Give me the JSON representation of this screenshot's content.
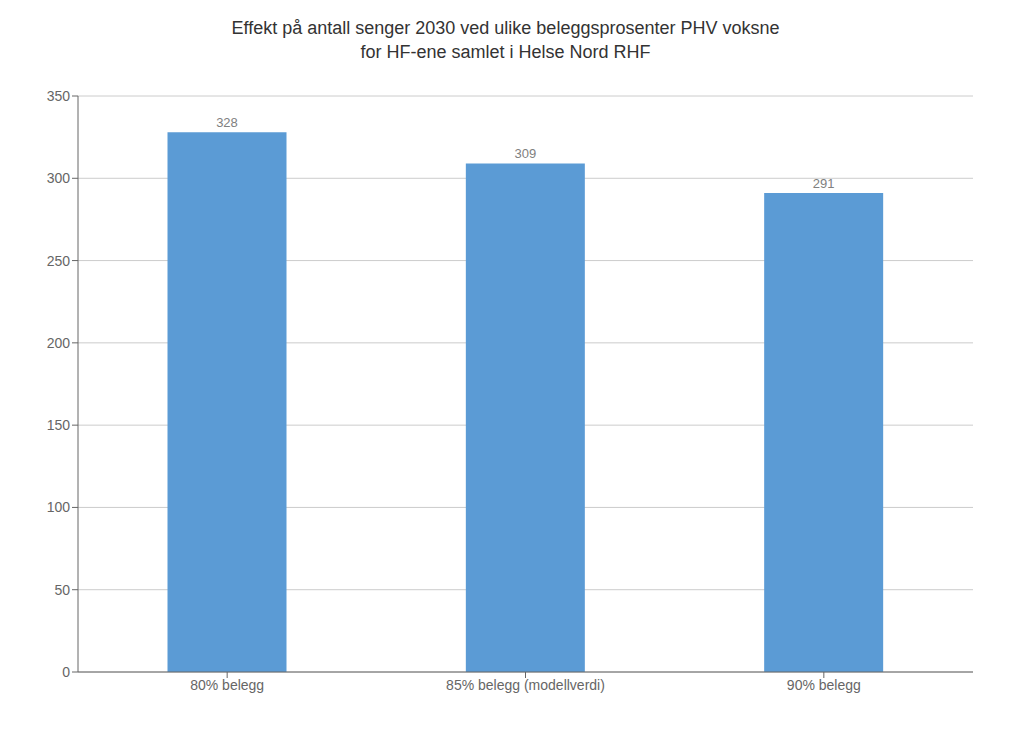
{
  "chart_data": {
    "type": "bar",
    "title": "Effekt på antall senger 2030 ved ulike beleggsprosenter PHV voksne",
    "subtitle": "for HF-ene samlet i Helse Nord RHF",
    "categories": [
      "80% belegg",
      "85% belegg (modellverdi)",
      "90% belegg"
    ],
    "values": [
      328,
      309,
      291
    ],
    "color": "#5B9BD5",
    "ylim": [
      0,
      350
    ],
    "yticks": [
      0,
      50,
      100,
      150,
      200,
      250,
      300,
      350
    ],
    "grid": true,
    "data_labels": true
  }
}
